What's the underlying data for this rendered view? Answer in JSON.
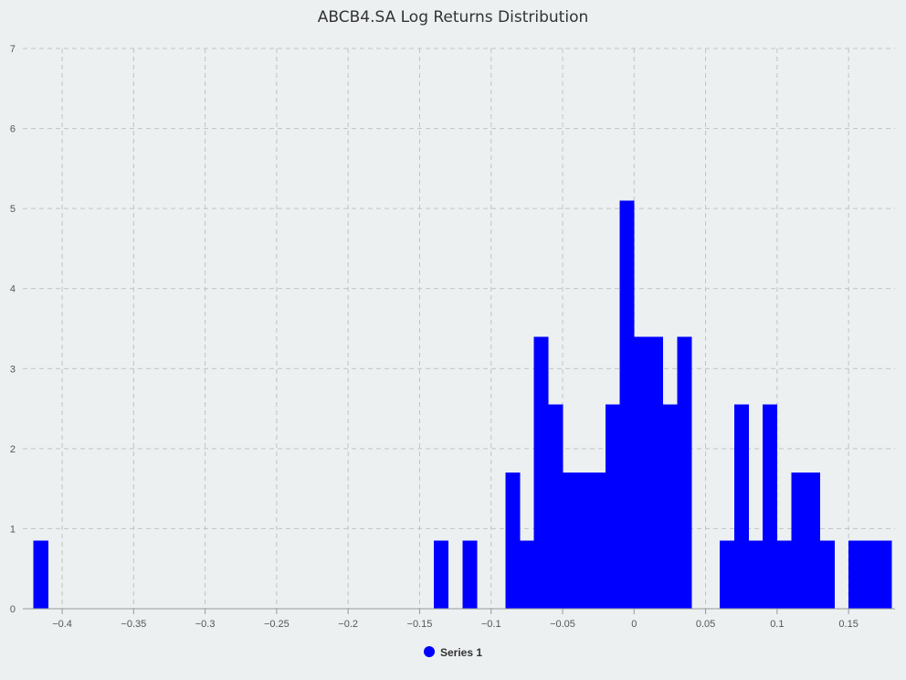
{
  "chart_data": {
    "type": "bar",
    "title": "ABCB4.SA Log Returns Distribution",
    "xlabel": "",
    "ylabel": "",
    "xlim": [
      -0.4275,
      0.1825
    ],
    "ylim": [
      0,
      7
    ],
    "x_ticks": [
      -0.4,
      -0.35,
      -0.3,
      -0.25,
      -0.2,
      -0.15,
      -0.1,
      -0.05,
      0,
      0.05,
      0.1,
      0.15
    ],
    "x_tick_labels": [
      "−0.4",
      "−0.35",
      "−0.3",
      "−0.25",
      "−0.2",
      "−0.15",
      "−0.1",
      "−0.05",
      "0",
      "0.05",
      "0.1",
      "0.15"
    ],
    "y_ticks": [
      0,
      1,
      2,
      3,
      4,
      5,
      6,
      7
    ],
    "y_tick_labels": [
      "0",
      "1",
      "2",
      "3",
      "4",
      "5",
      "6",
      "7"
    ],
    "grid": true,
    "legend_position": "bottom-center",
    "bin_width": 0.01,
    "series": [
      {
        "name": "Series 1",
        "color": "#0000ff",
        "bins": [
          {
            "x0": -0.42,
            "x1": -0.41,
            "value": 0.85
          },
          {
            "x0": -0.14,
            "x1": -0.13,
            "value": 0.85
          },
          {
            "x0": -0.12,
            "x1": -0.11,
            "value": 0.85
          },
          {
            "x0": -0.09,
            "x1": -0.08,
            "value": 1.7
          },
          {
            "x0": -0.08,
            "x1": -0.07,
            "value": 0.85
          },
          {
            "x0": -0.07,
            "x1": -0.06,
            "value": 3.4
          },
          {
            "x0": -0.06,
            "x1": -0.05,
            "value": 2.55
          },
          {
            "x0": -0.05,
            "x1": -0.04,
            "value": 1.7
          },
          {
            "x0": -0.04,
            "x1": -0.03,
            "value": 1.7
          },
          {
            "x0": -0.03,
            "x1": -0.02,
            "value": 1.7
          },
          {
            "x0": -0.02,
            "x1": -0.01,
            "value": 2.55
          },
          {
            "x0": -0.01,
            "x1": 0.0,
            "value": 5.1
          },
          {
            "x0": 0.0,
            "x1": 0.01,
            "value": 3.4
          },
          {
            "x0": 0.01,
            "x1": 0.02,
            "value": 3.4
          },
          {
            "x0": 0.02,
            "x1": 0.03,
            "value": 2.55
          },
          {
            "x0": 0.03,
            "x1": 0.04,
            "value": 3.4
          },
          {
            "x0": 0.06,
            "x1": 0.07,
            "value": 0.85
          },
          {
            "x0": 0.07,
            "x1": 0.08,
            "value": 2.55
          },
          {
            "x0": 0.08,
            "x1": 0.09,
            "value": 0.85
          },
          {
            "x0": 0.09,
            "x1": 0.1,
            "value": 2.55
          },
          {
            "x0": 0.1,
            "x1": 0.11,
            "value": 0.85
          },
          {
            "x0": 0.11,
            "x1": 0.12,
            "value": 1.7
          },
          {
            "x0": 0.12,
            "x1": 0.13,
            "value": 1.7
          },
          {
            "x0": 0.13,
            "x1": 0.14,
            "value": 0.85
          },
          {
            "x0": 0.15,
            "x1": 0.16,
            "value": 0.85
          },
          {
            "x0": 0.16,
            "x1": 0.17,
            "value": 0.85
          },
          {
            "x0": 0.17,
            "x1": 0.18,
            "value": 0.85
          }
        ]
      }
    ]
  }
}
